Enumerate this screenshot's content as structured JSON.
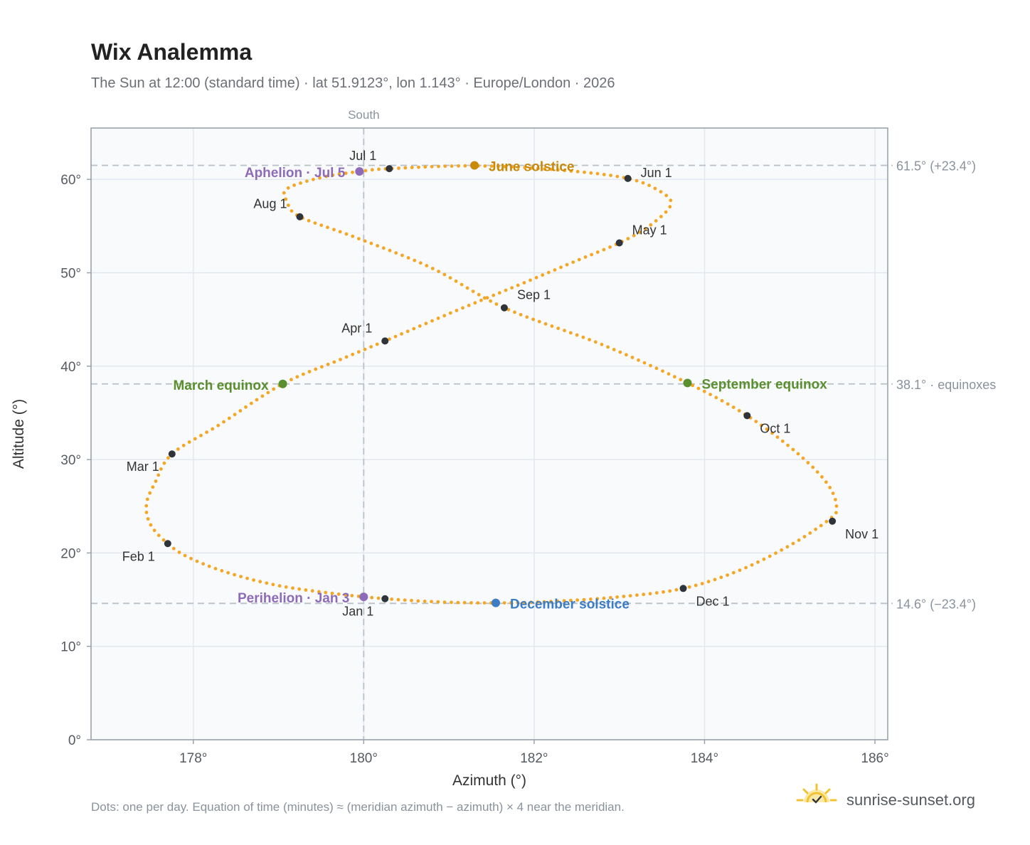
{
  "chart_data": {
    "type": "scatter",
    "title": "Wix Analemma",
    "subtitle": "The Sun at 12:00 (standard time) · lat 51.9123°, lon 1.143° · Europe/London · 2026",
    "xlabel": "Azimuth (°)",
    "ylabel": "Altitude (°)",
    "xlim": [
      176.8,
      186.15
    ],
    "ylim": [
      0,
      65.5
    ],
    "x_ticks": [
      178,
      180,
      182,
      184,
      186
    ],
    "x_tick_labels": [
      "178°",
      "180°",
      "182°",
      "184°",
      "186°"
    ],
    "y_ticks": [
      0,
      10,
      20,
      30,
      40,
      50,
      60
    ],
    "y_tick_labels": [
      "0°",
      "10°",
      "20°",
      "30°",
      "40°",
      "50°",
      "60°"
    ],
    "grid": true,
    "meridian": {
      "azimuth": 180,
      "label": "South"
    },
    "reference_lines": [
      {
        "altitude": 61.5,
        "label": "61.5° (+23.4°)"
      },
      {
        "altitude": 38.1,
        "label": "38.1° · equinoxes"
      },
      {
        "altitude": 14.6,
        "label": "14.6° (−23.4°)"
      }
    ],
    "series": [
      {
        "points_per": "day",
        "color": "#f5a623",
        "path_anchors": [
          [
            180.25,
            15.1
          ],
          [
            179.7,
            15.6
          ],
          [
            179.0,
            16.5
          ],
          [
            178.4,
            17.9
          ],
          [
            177.95,
            19.5
          ],
          [
            177.7,
            21.0
          ],
          [
            177.5,
            23.0
          ],
          [
            177.45,
            25.2
          ],
          [
            177.55,
            27.5
          ],
          [
            177.75,
            30.6
          ],
          [
            178.3,
            33.7
          ],
          [
            179.05,
            38.1
          ],
          [
            179.75,
            40.8
          ],
          [
            180.25,
            42.7
          ],
          [
            181.1,
            46.0
          ],
          [
            181.9,
            49.0
          ],
          [
            182.5,
            51.3
          ],
          [
            183.0,
            53.2
          ],
          [
            183.35,
            55.0
          ],
          [
            183.6,
            57.2
          ],
          [
            183.5,
            58.6
          ],
          [
            183.1,
            60.1
          ],
          [
            182.3,
            61.0
          ],
          [
            181.3,
            61.45
          ],
          [
            180.3,
            61.15
          ],
          [
            179.95,
            60.85
          ],
          [
            179.5,
            60.2
          ],
          [
            179.1,
            59.0
          ],
          [
            179.1,
            57.6
          ],
          [
            179.25,
            56.0
          ],
          [
            179.9,
            53.8
          ],
          [
            180.8,
            50.5
          ],
          [
            181.65,
            46.25
          ],
          [
            182.8,
            42.3
          ],
          [
            183.8,
            38.2
          ],
          [
            184.5,
            34.7
          ],
          [
            185.1,
            30.6
          ],
          [
            185.45,
            27.3
          ],
          [
            185.55,
            24.8
          ],
          [
            185.45,
            23.5
          ],
          [
            185.0,
            20.8
          ],
          [
            184.4,
            18.1
          ],
          [
            183.75,
            16.2
          ],
          [
            183.0,
            15.3
          ],
          [
            182.2,
            14.8
          ],
          [
            181.55,
            14.65
          ],
          [
            180.9,
            14.75
          ],
          [
            180.25,
            15.1
          ]
        ]
      }
    ],
    "month_markers": [
      {
        "label": "Jan 1",
        "azimuth": 180.25,
        "altitude": 15.1
      },
      {
        "label": "Feb 1",
        "azimuth": 177.7,
        "altitude": 21.0
      },
      {
        "label": "Mar 1",
        "azimuth": 177.75,
        "altitude": 30.6
      },
      {
        "label": "Apr 1",
        "azimuth": 180.25,
        "altitude": 42.7
      },
      {
        "label": "May 1",
        "azimuth": 183.0,
        "altitude": 53.2
      },
      {
        "label": "Jun 1",
        "azimuth": 183.1,
        "altitude": 60.1
      },
      {
        "label": "Jul 1",
        "azimuth": 180.3,
        "altitude": 61.15
      },
      {
        "label": "Aug 1",
        "azimuth": 179.25,
        "altitude": 56.0
      },
      {
        "label": "Sep 1",
        "azimuth": 181.65,
        "altitude": 46.25
      },
      {
        "label": "Oct 1",
        "azimuth": 184.5,
        "altitude": 34.7
      },
      {
        "label": "Nov 1",
        "azimuth": 185.5,
        "altitude": 23.4
      },
      {
        "label": "Dec 1",
        "azimuth": 183.75,
        "altitude": 16.2
      }
    ],
    "events": [
      {
        "label": "June solstice",
        "azimuth": 181.3,
        "altitude": 61.5,
        "color": "#c98a0a"
      },
      {
        "label": "Aphelion · Jul 5",
        "azimuth": 179.95,
        "altitude": 60.85,
        "color": "#8e6bb8"
      },
      {
        "label": "March equinox",
        "azimuth": 179.05,
        "altitude": 38.1,
        "color": "#5a8f2e"
      },
      {
        "label": "September equinox",
        "azimuth": 183.8,
        "altitude": 38.2,
        "color": "#5a8f2e"
      },
      {
        "label": "Perihelion · Jan 3",
        "azimuth": 180.0,
        "altitude": 15.3,
        "color": "#8e6bb8"
      },
      {
        "label": "December solstice",
        "azimuth": 181.55,
        "altitude": 14.65,
        "color": "#3b7cc4"
      }
    ],
    "footnote": "Dots: one per day. Equation of time (minutes) ≈ (meridian azimuth − azimuth) × 4 near the meridian.",
    "source": "sunrise-sunset.org"
  },
  "colors": {
    "path": "#f5a623",
    "marker": "#2f343b",
    "plot_background": "#f8fafc",
    "grid": "#e3e8ee",
    "frame": "#9aa3ad",
    "reference_line": "#b9c1c9",
    "brand_sun": "#f2c230"
  },
  "icons": {
    "brand": "sun-check-icon"
  }
}
